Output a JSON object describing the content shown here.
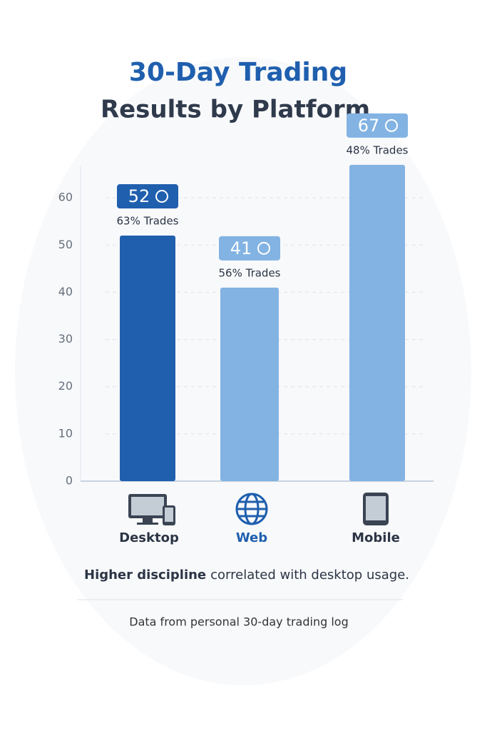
{
  "chart_data": {
    "type": "bar",
    "title_lines": [
      "30-Day Trading",
      "Results by Platform"
    ],
    "categories": [
      "Desktop",
      "Web",
      "Mobile"
    ],
    "values": [
      52,
      41,
      67
    ],
    "colors": [
      "#1f5fae",
      "#82b3e3",
      "#82b3e3"
    ],
    "category_colors": [
      "#2b3545",
      "#1f5fae",
      "#2b3545"
    ],
    "trade_labels": [
      "63% Trades",
      "56% Trades",
      "48% Trades"
    ],
    "ylim": [
      0,
      70
    ],
    "yticks": [
      0,
      10,
      20,
      30,
      40,
      50,
      60
    ],
    "grid": true,
    "note": {
      "bold": "Higher discipline",
      "text": "correlated with desktop usage."
    },
    "source": "Data from personal 30-day trading log"
  }
}
